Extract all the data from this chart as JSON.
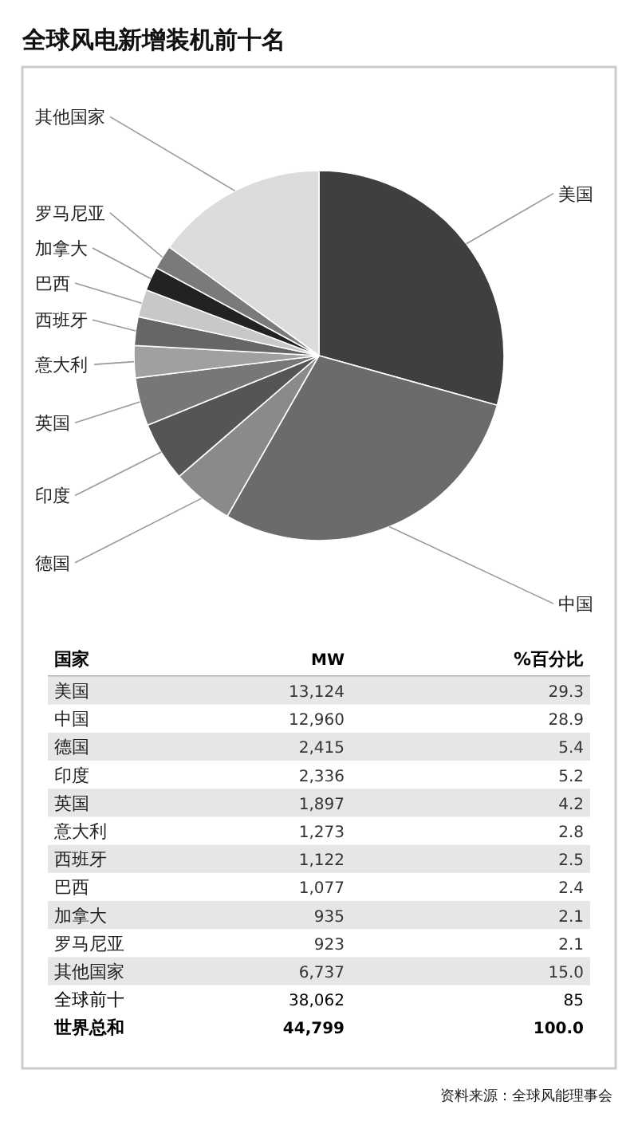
{
  "chart_data": {
    "type": "pie",
    "title": "全球风电新增装机前十名",
    "categories": [
      "美国",
      "中国",
      "德国",
      "印度",
      "英国",
      "意大利",
      "西班牙",
      "巴西",
      "加拿大",
      "罗马尼亚",
      "其他国家"
    ],
    "values": [
      29.3,
      28.9,
      5.4,
      5.2,
      4.2,
      2.8,
      2.5,
      2.4,
      2.1,
      2.1,
      15.0
    ],
    "colors": [
      "#3f3f3f",
      "#6b6b6b",
      "#8a8a8a",
      "#555555",
      "#777777",
      "#a0a0a0",
      "#666666",
      "#c8c8c8",
      "#222222",
      "#7a7a7a",
      "#dcdcdc"
    ],
    "annotations": [
      "国家",
      "MW",
      "%百分比",
      "13,124",
      "12,960",
      "2,415",
      "2,336",
      "1,897",
      "1,273",
      "1,122",
      "1,077",
      "935",
      "923",
      "6,737",
      "29.3",
      "28.9",
      "5.4",
      "5.2",
      "4.2",
      "2.8",
      "2.5",
      "2.4",
      "2.1",
      "2.1",
      "15.0",
      "全球前十",
      "38,062",
      "85",
      "世界总和",
      "44,799",
      "100.0",
      "资料来源：全球风能理事会"
    ]
  }
}
